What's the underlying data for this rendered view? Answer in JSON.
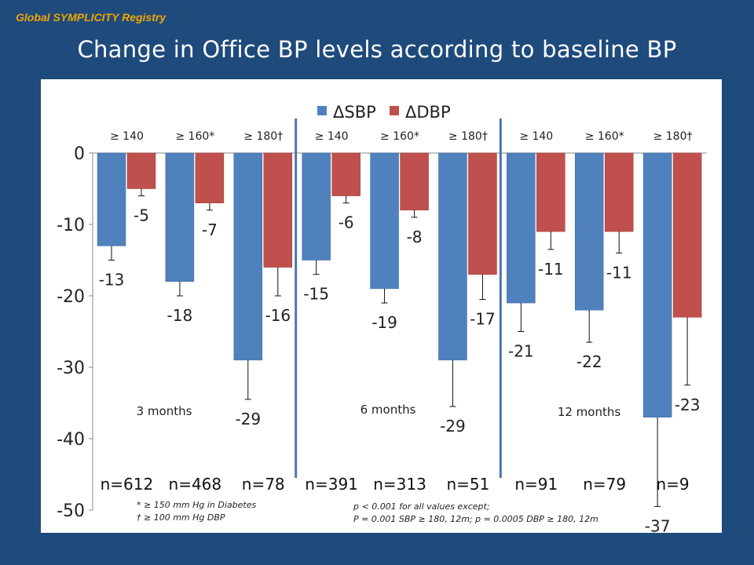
{
  "header": {
    "registry": "Global SYMPLICITY Registry",
    "title": "Change in Office BP levels according to baseline BP"
  },
  "notes": {
    "footnote_star": "* ≥ 150 mm Hg in Diabetes",
    "footnote_dagger": "† ≥ 100 mm Hg DBP",
    "pvalue_line1": "p < 0.001 for all values except;",
    "pvalue_line2": "P = 0.001 SBP ≥ 180, 12m; p = 0.0005 DBP ≥ 180, 12m"
  },
  "chart_data": {
    "type": "bar",
    "title": "",
    "xlabel": "",
    "ylabel": "",
    "ylim": [
      -50,
      0
    ],
    "yticks": [
      "0",
      "-10",
      "-20",
      "-30",
      "-40",
      "-50"
    ],
    "legend": [
      "ΔSBP",
      "ΔDBP"
    ],
    "legend_position": "top",
    "colors": {
      "sbp": "#4f81bd",
      "dbp": "#c0504d"
    },
    "groups": [
      {
        "label": "≥ 140",
        "n": "n=612",
        "sbp": -13,
        "dbp": -5,
        "sbp_label": "-13",
        "dbp_label": "-5",
        "sbp_err": -15,
        "dbp_err": -6
      },
      {
        "label": "≥ 160*",
        "n": "n=468",
        "sbp": -18,
        "dbp": -7,
        "sbp_label": "-18",
        "dbp_label": "-7",
        "sbp_err": -20,
        "dbp_err": -8
      },
      {
        "label": "≥ 180†",
        "n": "n=78",
        "sbp": -29,
        "dbp": -16,
        "sbp_label": "-29",
        "dbp_label": "-16",
        "sbp_err": -34.5,
        "dbp_err": -20
      },
      {
        "label": "≥ 140",
        "n": "n=391",
        "sbp": -15,
        "dbp": -6,
        "sbp_label": "-15",
        "dbp_label": "-6",
        "sbp_err": -17,
        "dbp_err": -7
      },
      {
        "label": "≥ 160*",
        "n": "n=313",
        "sbp": -19,
        "dbp": -8,
        "sbp_label": "-19",
        "dbp_label": "-8",
        "sbp_err": -21,
        "dbp_err": -9
      },
      {
        "label": "≥ 180†",
        "n": "n=51",
        "sbp": -29,
        "dbp": -17,
        "sbp_label": "-29",
        "dbp_label": "-17",
        "sbp_err": -35.5,
        "dbp_err": -20.5
      },
      {
        "label": "≥ 140",
        "n": "n=91",
        "sbp": -21,
        "dbp": -11,
        "sbp_label": "-21",
        "dbp_label": "-11",
        "sbp_err": -25,
        "dbp_err": -13.5
      },
      {
        "label": "≥ 160*",
        "n": "n=79",
        "sbp": -22,
        "dbp": -11,
        "sbp_label": "-22",
        "dbp_label": "-11",
        "sbp_err": -26.5,
        "dbp_err": -14
      },
      {
        "label": "≥ 180†",
        "n": "n=9",
        "sbp": -37,
        "dbp": -23,
        "sbp_label": "-37",
        "dbp_label": "-23",
        "sbp_err": -49.5,
        "dbp_err": -32.5
      }
    ],
    "periods": [
      "3 months",
      "6 months",
      "12 months"
    ]
  }
}
